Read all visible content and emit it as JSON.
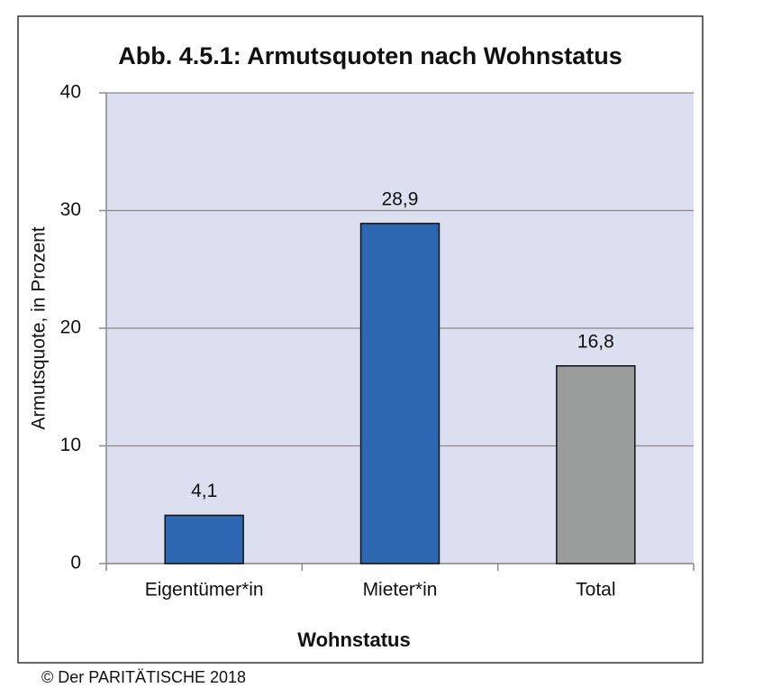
{
  "chart_data": {
    "type": "bar",
    "title": "Abb. 4.5.1: Armutsquoten nach Wohnstatus",
    "x_label": "Wohnstatus",
    "y_label": "Armutsquote, in Prozent",
    "source": "© Der PARITÄTISCHE 2018",
    "categories": [
      "Eigentümer*in",
      "Mieter*in",
      "Total"
    ],
    "values": [
      4.1,
      28.9,
      16.8
    ],
    "value_labels": [
      "4,1",
      "28,9",
      "16,8"
    ],
    "colors": [
      "#2e67b1",
      "#2e67b1",
      "#9a9d9c"
    ],
    "ylim": [
      0,
      40
    ],
    "yticks": [
      0,
      10,
      20,
      30,
      40
    ],
    "grid": true
  }
}
